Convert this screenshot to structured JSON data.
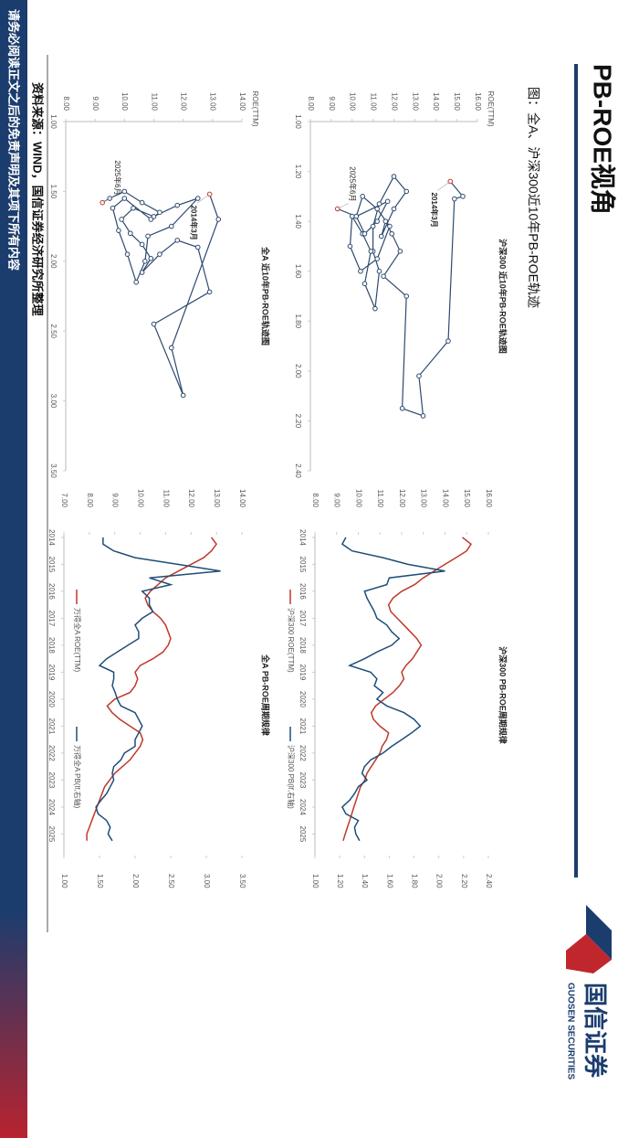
{
  "title": "PB-ROE视角",
  "subtitle": "图：全A、沪深300近10年PB-ROE轨迹",
  "source": "资料来源：WIND，国信证券经济研究所整理",
  "disclaimer": "请务必阅读正文之后的免责声明及其项下所有内容",
  "logo": {
    "name": "国信证券",
    "english": "GUOSEN SECURITIES"
  },
  "chart_data": [
    {
      "type": "scatter",
      "title": "沪深300 近10年PB-ROE轨迹图",
      "ylabel": "ROE(TTM)",
      "color": "#2e4a6e",
      "highlight_color": "#c0392b",
      "start_label": "2014年3月",
      "end_label": "2025年6月",
      "x": [
        1.24,
        1.3,
        1.31,
        1.88,
        2.02,
        2.18,
        2.15,
        1.7,
        1.62,
        1.52,
        1.45,
        1.4,
        1.46,
        1.35,
        1.28,
        1.22,
        1.33,
        1.42,
        1.52,
        1.6,
        1.75,
        1.65,
        1.52,
        1.45,
        1.38,
        1.5,
        1.6,
        1.55,
        1.42,
        1.35,
        1.3,
        1.38,
        1.45,
        1.4,
        1.32,
        1.38,
        1.35
      ],
      "values": [
        14.7,
        15.3,
        14.9,
        14.6,
        13.2,
        13.4,
        12.4,
        12.6,
        11.5,
        12.3,
        11.9,
        11.6,
        11.4,
        12.0,
        12.6,
        12.0,
        11.3,
        11.0,
        11.0,
        11.3,
        11.1,
        10.6,
        10.9,
        10.5,
        10.0,
        9.9,
        10.4,
        11.2,
        11.8,
        11.2,
        10.5,
        10.2,
        10.6,
        11.2,
        11.7,
        10.2,
        9.3
      ],
      "xlim": [
        1,
        2.4
      ],
      "ylim": [
        8,
        16
      ],
      "xticks": [
        {
          "value": 1,
          "label": "1.00"
        },
        {
          "value": 1.2,
          "label": "1.20"
        },
        {
          "value": 1.4,
          "label": "1.40"
        },
        {
          "value": 1.6,
          "label": "1.60"
        },
        {
          "value": 1.8,
          "label": "1.80"
        },
        {
          "value": 2,
          "label": "2.00"
        },
        {
          "value": 2.2,
          "label": "2.20"
        },
        {
          "value": 2.4,
          "label": "2.40"
        }
      ],
      "yticks": [
        {
          "value": 8,
          "label": "8.00"
        },
        {
          "value": 9,
          "label": "9.00"
        },
        {
          "value": 10,
          "label": "10.00"
        },
        {
          "value": 11,
          "label": "11.00"
        },
        {
          "value": 12,
          "label": "12.00"
        },
        {
          "value": 13,
          "label": "13.00"
        },
        {
          "value": 14,
          "label": "14.00"
        },
        {
          "value": 15,
          "label": "15.00"
        },
        {
          "value": 16,
          "label": "16.00"
        }
      ],
      "grid": false
    },
    {
      "type": "scatter",
      "title": "全A 近10年PB-ROE轨迹图",
      "ylabel": "ROE(TTM)",
      "color": "#2e4a6e",
      "highlight_color": "#c0392b",
      "start_label": "2014年3月",
      "end_label": "2025年6月",
      "x": [
        1.52,
        1.7,
        2.62,
        2.96,
        2.45,
        2.22,
        1.9,
        1.85,
        1.95,
        2.08,
        1.98,
        1.88,
        1.8,
        1.7,
        1.62,
        1.68,
        1.6,
        1.55,
        1.75,
        1.82,
        2.0,
        2.15,
        1.95,
        1.78,
        1.62,
        1.55,
        1.7,
        1.65,
        1.58,
        1.5,
        1.55,
        1.58
      ],
      "values": [
        12.9,
        13.2,
        11.6,
        12.0,
        11.0,
        12.9,
        12.5,
        11.8,
        11.2,
        10.6,
        10.9,
        10.6,
        10.2,
        9.9,
        10.3,
        11.0,
        11.8,
        12.5,
        11.6,
        10.8,
        10.7,
        10.4,
        10.1,
        9.8,
        9.6,
        10.0,
        10.9,
        11.2,
        10.6,
        10.0,
        9.5,
        9.25
      ],
      "xlim": [
        1,
        3.5
      ],
      "ylim": [
        8,
        14
      ],
      "xticks": [
        {
          "value": 1,
          "label": "1.00"
        },
        {
          "value": 1.5,
          "label": "1.50"
        },
        {
          "value": 2,
          "label": "2.00"
        },
        {
          "value": 2.5,
          "label": "2.50"
        },
        {
          "value": 3,
          "label": "3.00"
        },
        {
          "value": 3.5,
          "label": "3.50"
        }
      ],
      "yticks": [
        {
          "value": 8,
          "label": "8.00"
        },
        {
          "value": 9,
          "label": "9.00"
        },
        {
          "value": 10,
          "label": "10.00"
        },
        {
          "value": 11,
          "label": "11.00"
        },
        {
          "value": 12,
          "label": "12.00"
        },
        {
          "value": 13,
          "label": "13.00"
        },
        {
          "value": 14,
          "label": "14.00"
        }
      ],
      "grid": false
    },
    {
      "type": "line",
      "title": "沪深300 PB-ROE周期规律",
      "x": [
        2014,
        2014.25,
        2014.5,
        2014.75,
        2015,
        2015.25,
        2015.5,
        2015.75,
        2016,
        2016.25,
        2016.5,
        2016.75,
        2017,
        2017.25,
        2017.5,
        2017.75,
        2018,
        2018.25,
        2018.5,
        2018.75,
        2019,
        2019.25,
        2019.5,
        2019.75,
        2020,
        2020.25,
        2020.5,
        2020.75,
        2021,
        2021.25,
        2021.5,
        2021.75,
        2022,
        2022.25,
        2022.5,
        2022.75,
        2023,
        2023.25,
        2023.5,
        2023.75,
        2024,
        2024.25,
        2024.5,
        2024.75,
        2025,
        2025.25
      ],
      "series": [
        {
          "name": "沪深300 ROE(TTM)",
          "color": "#c0392b",
          "values": [
            14.8,
            15.2,
            15.0,
            14.5,
            14.0,
            13.5,
            13.0,
            12.6,
            12.0,
            11.6,
            11.4,
            11.5,
            11.8,
            12.1,
            12.4,
            12.7,
            12.9,
            12.7,
            12.5,
            12.2,
            12.0,
            12.1,
            11.9,
            11.6,
            11.2,
            10.8,
            10.6,
            10.7,
            11.0,
            11.4,
            11.3,
            11.1,
            11.0,
            10.8,
            10.6,
            10.4,
            10.3,
            10.1,
            10.0,
            9.9,
            9.8,
            9.7,
            9.6,
            9.5,
            9.4,
            9.3
          ]
        },
        {
          "name": "沪深300 PB(lf,右轴)",
          "color": "#1f4e79",
          "axis": "y2",
          "values": [
            1.25,
            1.22,
            1.3,
            1.55,
            1.75,
            2.05,
            1.6,
            1.58,
            1.4,
            1.42,
            1.45,
            1.48,
            1.5,
            1.58,
            1.62,
            1.68,
            1.62,
            1.5,
            1.4,
            1.28,
            1.45,
            1.5,
            1.48,
            1.55,
            1.5,
            1.58,
            1.72,
            1.8,
            1.85,
            1.78,
            1.7,
            1.62,
            1.55,
            1.45,
            1.4,
            1.38,
            1.42,
            1.35,
            1.32,
            1.28,
            1.22,
            1.25,
            1.35,
            1.32,
            1.33,
            1.36
          ]
        }
      ],
      "xlim": [
        2013.9,
        2025.8
      ],
      "xticks": [
        2014,
        2015,
        2016,
        2017,
        2018,
        2019,
        2020,
        2021,
        2022,
        2023,
        2024,
        2025
      ],
      "ylim": [
        8,
        16
      ],
      "yticks": [
        {
          "value": 8,
          "label": "8.00"
        },
        {
          "value": 9,
          "label": "9.00"
        },
        {
          "value": 10,
          "label": "10.00"
        },
        {
          "value": 11,
          "label": "11.00"
        },
        {
          "value": 12,
          "label": "12.00"
        },
        {
          "value": 13,
          "label": "13.00"
        },
        {
          "value": 14,
          "label": "14.00"
        },
        {
          "value": 15,
          "label": "15.00"
        },
        {
          "value": 16,
          "label": "16.00"
        }
      ],
      "y2lim": [
        1,
        2.4
      ],
      "y2ticks": [
        {
          "value": 1,
          "label": "1.00"
        },
        {
          "value": 1.2,
          "label": "1.20"
        },
        {
          "value": 1.4,
          "label": "1.40"
        },
        {
          "value": 1.6,
          "label": "1.60"
        },
        {
          "value": 1.8,
          "label": "1.80"
        },
        {
          "value": 2,
          "label": "2.00"
        },
        {
          "value": 2.2,
          "label": "2.20"
        },
        {
          "value": 2.4,
          "label": "2.40"
        }
      ],
      "grid": false
    },
    {
      "type": "line",
      "title": "全A PB-ROE周期规律",
      "x": [
        2014,
        2014.25,
        2014.5,
        2014.75,
        2015,
        2015.25,
        2015.5,
        2015.75,
        2016,
        2016.25,
        2016.5,
        2016.75,
        2017,
        2017.25,
        2017.5,
        2017.75,
        2018,
        2018.25,
        2018.5,
        2018.75,
        2019,
        2019.25,
        2019.5,
        2019.75,
        2020,
        2020.25,
        2020.5,
        2020.75,
        2021,
        2021.25,
        2021.5,
        2021.75,
        2022,
        2022.25,
        2022.5,
        2022.75,
        2023,
        2023.25,
        2023.5,
        2023.75,
        2024,
        2024.25,
        2024.5,
        2024.75,
        2025,
        2025.25
      ],
      "series": [
        {
          "name": "万得全A ROE(TTM)",
          "color": "#c0392b",
          "values": [
            12.8,
            13.0,
            12.8,
            12.5,
            12.0,
            11.5,
            11.0,
            10.7,
            10.4,
            10.2,
            10.3,
            10.5,
            10.8,
            11.0,
            11.1,
            11.2,
            11.1,
            10.9,
            10.5,
            10.0,
            9.8,
            9.9,
            9.8,
            9.6,
            9.0,
            8.7,
            8.9,
            9.2,
            9.6,
            10.0,
            10.1,
            10.0,
            9.8,
            9.6,
            9.3,
            9.0,
            8.8,
            8.6,
            8.5,
            8.4,
            8.3,
            8.2,
            8.1,
            8.0,
            7.9,
            7.9
          ]
        },
        {
          "name": "万得全A PB(lf,右轴)",
          "color": "#1f4e79",
          "axis": "y2",
          "values": [
            1.55,
            1.55,
            1.7,
            2.0,
            2.6,
            3.2,
            2.2,
            2.5,
            2.1,
            2.2,
            2.2,
            2.25,
            2.1,
            2.0,
            2.05,
            2.05,
            1.9,
            1.75,
            1.6,
            1.5,
            1.7,
            1.7,
            1.68,
            1.72,
            1.75,
            1.8,
            2.0,
            2.05,
            2.1,
            2.05,
            2.0,
            2.0,
            1.85,
            1.8,
            1.7,
            1.68,
            1.7,
            1.65,
            1.6,
            1.52,
            1.45,
            1.48,
            1.6,
            1.65,
            1.62,
            1.68
          ]
        }
      ],
      "xlim": [
        2013.9,
        2025.8
      ],
      "xticks": [
        2014,
        2015,
        2016,
        2017,
        2018,
        2019,
        2020,
        2021,
        2022,
        2023,
        2024,
        2025
      ],
      "ylim": [
        7,
        14
      ],
      "yticks": [
        {
          "value": 7,
          "label": "7.00"
        },
        {
          "value": 8,
          "label": "8.00"
        },
        {
          "value": 9,
          "label": "9.00"
        },
        {
          "value": 10,
          "label": "10.00"
        },
        {
          "value": 11,
          "label": "11.00"
        },
        {
          "value": 12,
          "label": "12.00"
        },
        {
          "value": 13,
          "label": "13.00"
        },
        {
          "value": 14,
          "label": "14.00"
        }
      ],
      "y2lim": [
        1,
        3.5
      ],
      "y2ticks": [
        {
          "value": 1,
          "label": "1.00"
        },
        {
          "value": 1.5,
          "label": "1.50"
        },
        {
          "value": 2,
          "label": "2.00"
        },
        {
          "value": 2.5,
          "label": "2.50"
        },
        {
          "value": 3,
          "label": "3.00"
        },
        {
          "value": 3.5,
          "label": "3.50"
        }
      ],
      "grid": false
    }
  ]
}
